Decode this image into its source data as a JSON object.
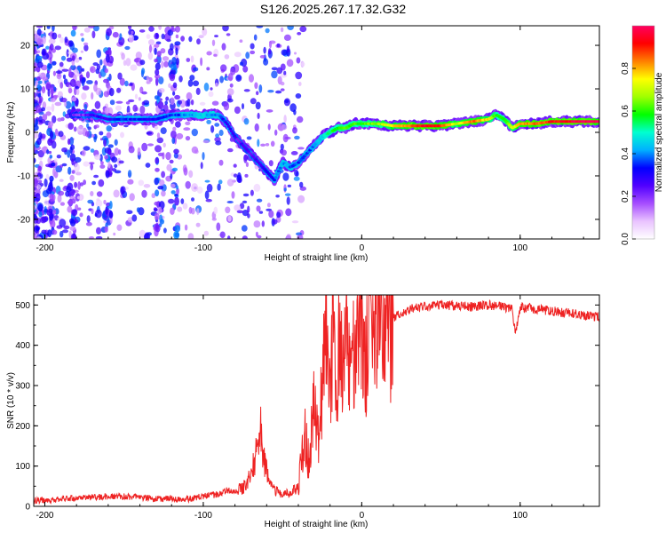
{
  "title": "S126.2025.267.17.32.G32",
  "chart_data": [
    {
      "type": "heatmap",
      "name": "spectrogram",
      "title": "",
      "xlabel": "Height of straight line (km)",
      "ylabel": "Frequency (Hz)",
      "xlim": [
        -207,
        150
      ],
      "ylim": [
        -24.5,
        24.5
      ],
      "xticks": [
        -200,
        -100,
        0,
        100
      ],
      "xtick_labels": [
        "-200",
        "-100",
        "0",
        "100"
      ],
      "yticks": [
        -20,
        -10,
        0,
        10,
        20
      ],
      "ytick_labels": [
        "-20",
        "-10",
        "0",
        "10",
        "20"
      ],
      "ridge": {
        "x": [
          -207,
          -200,
          -190,
          -180,
          -170,
          -160,
          -150,
          -140,
          -130,
          -120,
          -110,
          -100,
          -90,
          -85,
          -80,
          -75,
          -70,
          -65,
          -60,
          -55,
          -50,
          -45,
          -40,
          -35,
          -30,
          -25,
          -20,
          -15,
          -10,
          -5,
          0,
          10,
          20,
          30,
          40,
          50,
          60,
          70,
          80,
          85,
          90,
          95,
          100,
          110,
          120,
          130,
          140,
          150
        ],
        "y": [
          4,
          4,
          4,
          4,
          4,
          3,
          3,
          3,
          3,
          4,
          4,
          4,
          4,
          2,
          -1,
          -3,
          -5,
          -7,
          -9,
          -11,
          -7,
          -8,
          -7,
          -5,
          -3,
          -1,
          0,
          1,
          1,
          2,
          2,
          2,
          1.5,
          1.5,
          1.5,
          1.5,
          2,
          2.5,
          3,
          4,
          3,
          1,
          2,
          2,
          2.5,
          2.5,
          2.5,
          2.5
        ],
        "amplitude": [
          0.1,
          0.25,
          0.2,
          0.2,
          0.25,
          0.3,
          0.35,
          0.35,
          0.3,
          0.35,
          0.4,
          0.45,
          0.4,
          0.3,
          0.25,
          0.25,
          0.25,
          0.25,
          0.3,
          0.35,
          0.4,
          0.4,
          0.35,
          0.35,
          0.4,
          0.45,
          0.55,
          0.6,
          0.6,
          0.6,
          0.6,
          0.65,
          0.75,
          0.85,
          0.95,
          0.9,
          0.7,
          0.85,
          0.75,
          0.6,
          0.6,
          0.7,
          0.8,
          0.85,
          0.9,
          0.95,
          1.0,
          1.0
        ]
      },
      "colorbar": {
        "label": "Normalized spectral amplitude",
        "range": [
          0,
          1
        ],
        "ticks": [
          0.0,
          0.2,
          0.4,
          0.6,
          0.8
        ],
        "tick_labels": [
          "0.0",
          "0.2",
          "0.4",
          "0.6",
          "0.8"
        ],
        "colors": [
          "#ffffff",
          "#e9c3ff",
          "#a64dff",
          "#5000ff",
          "#0000ff",
          "#00b0ff",
          "#00ffd0",
          "#00ff00",
          "#a0ff00",
          "#ffff00",
          "#ff8000",
          "#ff0000",
          "#ff0060"
        ]
      }
    },
    {
      "type": "line",
      "name": "snr",
      "title": "",
      "xlabel": "Height of straight line (km)",
      "ylabel": "SNR (10 * v/v)",
      "xlim": [
        -207,
        150
      ],
      "ylim": [
        0,
        525
      ],
      "xticks": [
        -200,
        -100,
        0,
        100
      ],
      "xtick_labels": [
        "-200",
        "-100",
        "0",
        "100"
      ],
      "yticks": [
        0,
        100,
        200,
        300,
        400,
        500
      ],
      "ytick_labels": [
        "0",
        "100",
        "200",
        "300",
        "400",
        "500"
      ],
      "color": "#ee2222",
      "series": [
        {
          "name": "SNR",
          "x": [
            -207,
            -200,
            -190,
            -180,
            -170,
            -160,
            -150,
            -140,
            -130,
            -120,
            -110,
            -100,
            -90,
            -85,
            -80,
            -75,
            -70,
            -66,
            -64,
            -62,
            -60,
            -58,
            -55,
            -50,
            -45,
            -40,
            -36,
            -33,
            -30,
            -27,
            -24,
            -22,
            -20,
            -18,
            -16,
            -14,
            -12,
            -10,
            -8,
            -6,
            -4,
            -2,
            0,
            2,
            4,
            6,
            8,
            10,
            12,
            15,
            20,
            25,
            30,
            40,
            50,
            60,
            70,
            80,
            90,
            95,
            97,
            100,
            110,
            120,
            130,
            140,
            150
          ],
          "y": [
            15,
            15,
            18,
            20,
            22,
            25,
            25,
            22,
            18,
            20,
            18,
            25,
            30,
            40,
            40,
            45,
            80,
            140,
            200,
            120,
            90,
            50,
            40,
            30,
            35,
            50,
            180,
            100,
            280,
            150,
            380,
            470,
            250,
            480,
            200,
            460,
            300,
            500,
            350,
            430,
            320,
            480,
            450,
            380,
            400,
            420,
            450,
            470,
            440,
            460,
            470,
            480,
            490,
            495,
            500,
            498,
            495,
            500,
            495,
            490,
            430,
            495,
            490,
            485,
            480,
            475,
            470
          ]
        }
      ]
    }
  ]
}
